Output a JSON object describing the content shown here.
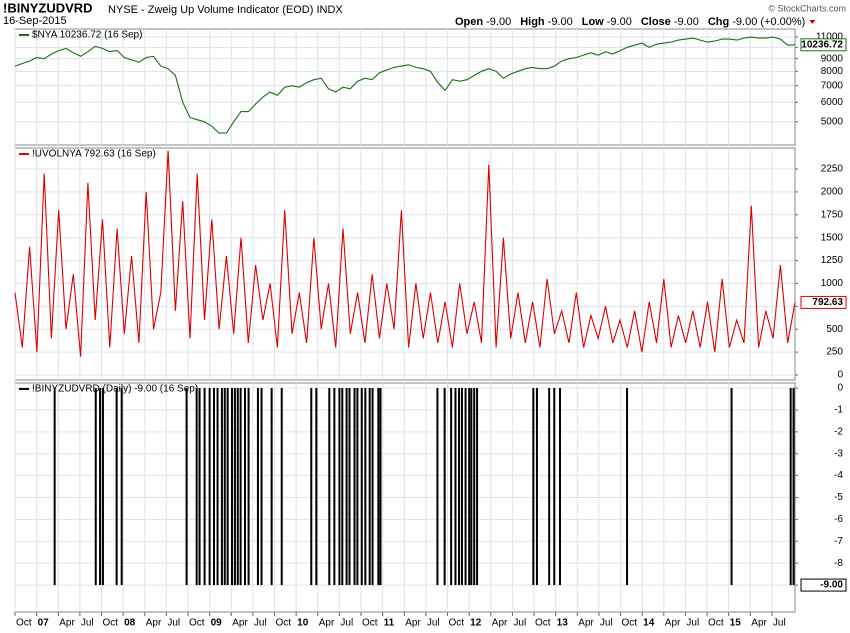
{
  "header": {
    "symbol": "!BINYZUDVRD",
    "description": "NYSE - Zweig Up Volume Indicator (EOD) INDX",
    "date": "16-Sep-2015",
    "copyright": "© StockCharts.com",
    "quote": [
      {
        "label": "Open",
        "value": "-9.00"
      },
      {
        "label": "High",
        "value": "-9.00"
      },
      {
        "label": "Low",
        "value": "-9.00"
      },
      {
        "label": "Close",
        "value": "-9.00"
      },
      {
        "label": "Chg",
        "value": "-9.00 (+0.00%)"
      }
    ]
  },
  "chart_data": [
    {
      "type": "line",
      "legend": "$NYA 10236.72 (16 Sep)",
      "last_label": "10236.72",
      "color": "#1a6e1a",
      "log": true,
      "xlim": [
        0,
        108.2
      ],
      "ylim": [
        4030,
        11860
      ],
      "yticks": [
        5000,
        6000,
        7000,
        8000,
        9000,
        10000,
        11000
      ],
      "values": [
        8400,
        8600,
        8800,
        9100,
        9000,
        9400,
        9700,
        9900,
        9500,
        9200,
        9600,
        10100,
        9900,
        9600,
        9700,
        9100,
        8900,
        8700,
        9100,
        9200,
        8400,
        8200,
        7700,
        6000,
        5200,
        5100,
        5000,
        4800,
        4500,
        4500,
        5000,
        5500,
        5500,
        5900,
        6300,
        6600,
        6400,
        6900,
        7000,
        6900,
        7200,
        7400,
        7500,
        6800,
        6600,
        6900,
        6800,
        7300,
        7500,
        7400,
        7900,
        8100,
        8300,
        8400,
        8500,
        8300,
        8200,
        8000,
        7200,
        6700,
        7400,
        7300,
        7400,
        7700,
        8000,
        8200,
        8000,
        7500,
        7800,
        8000,
        8200,
        8300,
        8200,
        8200,
        8400,
        8800,
        9000,
        9100,
        9300,
        9500,
        9300,
        9600,
        9400,
        9700,
        10000,
        10200,
        10400,
        10000,
        10300,
        10400,
        10500,
        10700,
        10800,
        10900,
        10700,
        10500,
        10600,
        10800,
        10800,
        10700,
        10900,
        11000,
        10900,
        10900,
        11000,
        10800,
        10200,
        10236.72
      ]
    },
    {
      "type": "line",
      "legend": "!UVOLNYA 792.63 (16 Sep)",
      "last_label": "792.63",
      "color": "#dd0000",
      "log": false,
      "xlim": [
        0,
        108.2
      ],
      "ylim": [
        -55,
        2480
      ],
      "yticks": [
        0,
        250,
        500,
        750,
        1000,
        1250,
        1500,
        1750,
        2000,
        2250
      ],
      "values": [
        900,
        300,
        1400,
        250,
        2200,
        400,
        1800,
        500,
        1100,
        200,
        2100,
        600,
        1700,
        300,
        1600,
        450,
        1300,
        350,
        2000,
        500,
        900,
        2450,
        700,
        1900,
        400,
        2200,
        600,
        1700,
        500,
        1300,
        450,
        1500,
        350,
        1200,
        600,
        1000,
        300,
        1800,
        450,
        900,
        350,
        1500,
        500,
        1000,
        300,
        1600,
        450,
        900,
        350,
        1100,
        400,
        1000,
        500,
        1800,
        300,
        1000,
        400,
        900,
        350,
        800,
        300,
        1000,
        450,
        800,
        350,
        2300,
        300,
        1500,
        400,
        900,
        350,
        800,
        300,
        1050,
        450,
        700,
        350,
        900,
        300,
        650,
        400,
        750,
        350,
        600,
        300,
        700,
        250,
        800,
        350,
        1050,
        300,
        650,
        350,
        700,
        300,
        800,
        250,
        1050,
        300,
        600,
        350,
        1850,
        300,
        700,
        400,
        1200,
        350,
        792.63
      ]
    },
    {
      "type": "bar",
      "legend": "!BINYZUDVRD (Daily) -9.00 (16 Sep)",
      "last_label": "-9.00",
      "color": "#000000",
      "log": false,
      "xlim": [
        0,
        108.2
      ],
      "ylim": [
        -10.23,
        0.23
      ],
      "yticks": [
        0,
        -1,
        -2,
        -3,
        -4,
        -5,
        -6,
        -7,
        -8,
        -9
      ],
      "x": [
        5.5,
        11.2,
        11.8,
        12.2,
        14.1,
        14.8,
        23.8,
        25.2,
        25.6,
        26.3,
        27.0,
        27.6,
        28.1,
        28.7,
        29.1,
        29.5,
        30.1,
        30.5,
        30.9,
        31.3,
        31.9,
        32.4,
        33.7,
        34.2,
        35.6,
        37.0,
        41.1,
        41.8,
        43.6,
        44.3,
        45.0,
        45.4,
        46.0,
        46.4,
        47.1,
        47.5,
        48.1,
        48.6,
        49.2,
        49.6,
        50.4,
        50.7,
        58.6,
        59.6,
        60.5,
        61.1,
        61.6,
        62.0,
        62.5,
        63.0,
        63.3,
        63.7,
        64.1,
        71.9,
        72.4,
        74.1,
        74.8,
        75.6,
        84.9,
        99.4,
        107.6,
        108
      ],
      "values": [
        -9,
        -9,
        -9,
        -9,
        -9,
        -9,
        -9,
        -9,
        -9,
        -9,
        -9,
        -9,
        -9,
        -9,
        -9,
        -9,
        -9,
        -9,
        -9,
        -9,
        -9,
        -9,
        -9,
        -9,
        -9,
        -9,
        -9,
        -9,
        -9,
        -9,
        -9,
        -9,
        -9,
        -9,
        -9,
        -9,
        -9,
        -9,
        -9,
        -9,
        -9,
        -9,
        -9,
        -9,
        -9,
        -9,
        -9,
        -9,
        -9,
        -9,
        -9,
        -9,
        -9,
        -9,
        -9,
        -9,
        -9,
        -9,
        -9,
        -9,
        -9,
        -9
      ],
      "xticks": [
        {
          "value": 0,
          "label": "Oct"
        },
        {
          "value": 3,
          "label": "07"
        },
        {
          "value": 6,
          "label": "Apr"
        },
        {
          "value": 9,
          "label": "Jul"
        },
        {
          "value": 12,
          "label": "Oct"
        },
        {
          "value": 15,
          "label": "08"
        },
        {
          "value": 18,
          "label": "Apr"
        },
        {
          "value": 21,
          "label": "Jul"
        },
        {
          "value": 24,
          "label": "Oct"
        },
        {
          "value": 27,
          "label": "09"
        },
        {
          "value": 30,
          "label": "Apr"
        },
        {
          "value": 33,
          "label": "Jul"
        },
        {
          "value": 36,
          "label": "Oct"
        },
        {
          "value": 39,
          "label": "10"
        },
        {
          "value": 42,
          "label": "Apr"
        },
        {
          "value": 45,
          "label": "Jul"
        },
        {
          "value": 48,
          "label": "Oct"
        },
        {
          "value": 51,
          "label": "11"
        },
        {
          "value": 54,
          "label": "Apr"
        },
        {
          "value": 57,
          "label": "Jul"
        },
        {
          "value": 60,
          "label": "Oct"
        },
        {
          "value": 63,
          "label": "12"
        },
        {
          "value": 66,
          "label": "Apr"
        },
        {
          "value": 69,
          "label": "Jul"
        },
        {
          "value": 72,
          "label": "Oct"
        },
        {
          "value": 75,
          "label": "13"
        },
        {
          "value": 78,
          "label": "Apr"
        },
        {
          "value": 81,
          "label": "Jul"
        },
        {
          "value": 84,
          "label": "Oct"
        },
        {
          "value": 87,
          "label": "14"
        },
        {
          "value": 90,
          "label": "Apr"
        },
        {
          "value": 93,
          "label": "Jul"
        },
        {
          "value": 96,
          "label": "Oct"
        },
        {
          "value": 99,
          "label": "15"
        },
        {
          "value": 102,
          "label": "Apr"
        },
        {
          "value": 105,
          "label": "Jul"
        }
      ]
    }
  ]
}
